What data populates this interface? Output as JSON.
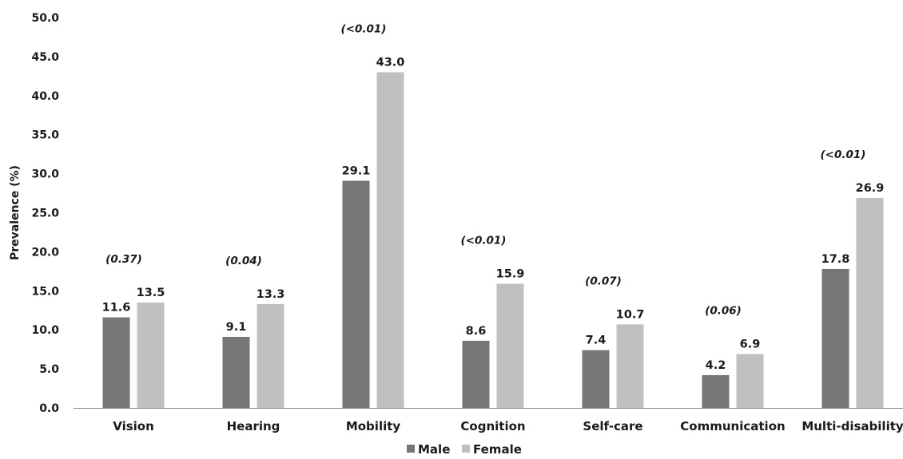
{
  "chart_data": {
    "type": "bar",
    "categories": [
      "Vision",
      "Hearing",
      "Mobility",
      "Cognition",
      "Self-care",
      "Communication",
      "Multi-disability"
    ],
    "series": [
      {
        "name": "Male",
        "color": "#767676",
        "values": [
          11.6,
          9.1,
          29.1,
          8.6,
          7.4,
          4.2,
          17.8
        ]
      },
      {
        "name": "Female",
        "color": "#c0c0c0",
        "values": [
          13.5,
          13.3,
          43.0,
          15.9,
          10.7,
          6.9,
          26.9
        ]
      }
    ],
    "value_labels": [
      [
        "11.6",
        "9.1",
        "29.1",
        "8.6",
        "7.4",
        "4.2",
        "17.8"
      ],
      [
        "13.5",
        "13.3",
        "43.0",
        "15.9",
        "10.7",
        "6.9",
        "26.9"
      ]
    ],
    "p_values": [
      "(0.37)",
      "(0.04)",
      "(<0.01)",
      "(<0.01)",
      "(0.07)",
      "(0.06)",
      "(<0.01)"
    ],
    "ylabel": "Prevalence (%)",
    "ylim": [
      0,
      50
    ],
    "yticks": [
      "0.0",
      "5.0",
      "10.0",
      "15.0",
      "20.0",
      "25.0",
      "30.0",
      "35.0",
      "40.0",
      "45.0",
      "50.0"
    ],
    "grid": false,
    "legend_position": "bottom-center"
  }
}
